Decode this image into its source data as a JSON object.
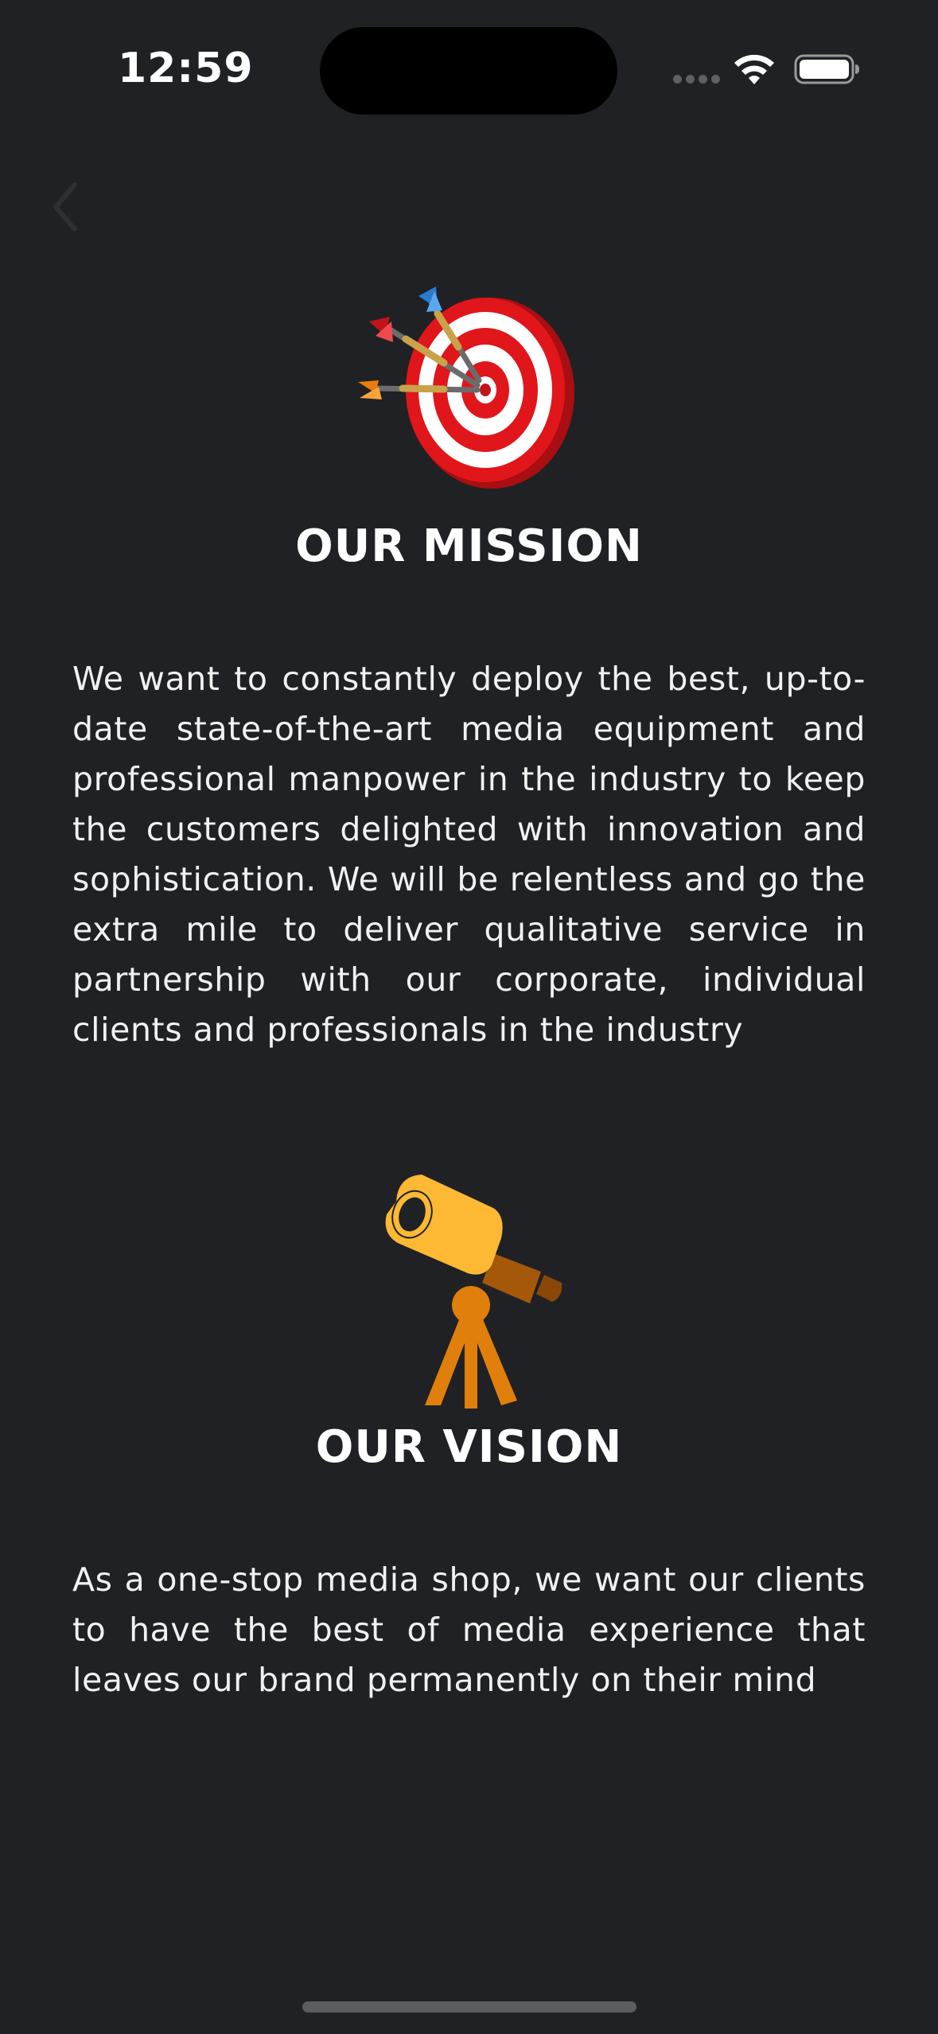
{
  "status_bar": {
    "time": "12:59",
    "icons": [
      "signal-icon",
      "wifi-icon",
      "battery-icon"
    ]
  },
  "navigation": {
    "back_icon": "chevron-left-icon"
  },
  "mission": {
    "icon": "dartboard-icon",
    "title": "OUR MISSION",
    "body": "We want to constantly deploy the best, up-to-date state-of-the-art media equipment and professional manpower in the industry to keep the customers delighted with innovation and sophistication. We will be relentless and go the extra mile to deliver qualitative service in partnership with our corporate, individual clients and professionals in the industry"
  },
  "vision": {
    "icon": "telescope-icon",
    "title": "OUR VISION",
    "body": "As a one-stop media shop, we want our clients to have the best of media experience that leaves our brand permanently on their mind"
  },
  "colors": {
    "background": "#202124",
    "text": "#ffffff",
    "dart_red": "#e0161b",
    "telescope_yellow": "#fdb933",
    "telescope_orange": "#e07f0c"
  }
}
